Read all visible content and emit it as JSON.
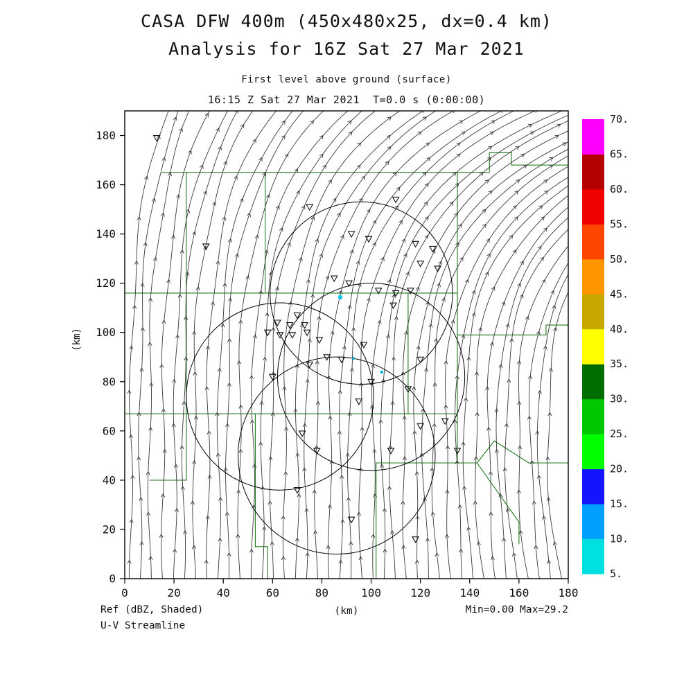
{
  "chart_data": {
    "type": "streamline",
    "title": "CASA DFW 400m (450x480x25, dx=0.4 km)",
    "subtitle": "Analysis for 16Z Sat 27 Mar 2021",
    "level_label": "First level above ground (surface)",
    "time_label": "16:15 Z Sat 27 Mar 2021  T=0.0 s (0:00:00)",
    "xlabel": "(km)",
    "ylabel": "(km)",
    "xlim": [
      0,
      180
    ],
    "ylim": [
      0,
      190
    ],
    "x_ticks": [
      0,
      20,
      40,
      60,
      80,
      100,
      120,
      140,
      160,
      180
    ],
    "y_ticks": [
      0,
      20,
      40,
      60,
      80,
      100,
      120,
      140,
      160,
      180
    ],
    "field_label": "Ref (dBZ, Shaded)",
    "overlay_label": "U-V Streamline",
    "stats_label": "Min=0.00 Max=29.2",
    "min_dbz": 0.0,
    "max_dbz": 29.2,
    "colorbar": {
      "unit": "dBZ",
      "levels": [
        5,
        10,
        15,
        20,
        25,
        30,
        35,
        40,
        45,
        50,
        55,
        60,
        65,
        70
      ],
      "label_suffix": ".",
      "colors_bottom_to_top": [
        "#00E0E0",
        "#00A0FF",
        "#1414FF",
        "#00FF00",
        "#00C800",
        "#006E00",
        "#FFFF00",
        "#C8A800",
        "#FF9600",
        "#FF4600",
        "#F00000",
        "#B40000",
        "#FF00FF"
      ]
    },
    "streamlines": {
      "description": "Southerly surface flow over the DFW domain, nearly straight south-to-north on the west side, veering and bending toward the northeast in the northern and eastern part of the domain",
      "color": "#383838",
      "seed_spacing_km": 4.5,
      "arrow_spacing_px": 62,
      "params": {
        "bend_strength": 2.6,
        "bend_start_y": 58,
        "profile_min": 0.12,
        "profile_exp": 1.4,
        "wiggle_amp": 0.06
      }
    },
    "range_circles": [
      {
        "cx": 96,
        "cy": 116,
        "r": 37
      },
      {
        "cx": 100,
        "cy": 82,
        "r": 38
      },
      {
        "cx": 63,
        "cy": 74,
        "r": 38
      },
      {
        "cx": 86,
        "cy": 50,
        "r": 40
      }
    ],
    "county_borders": {
      "color": "#1E7A1E",
      "polylines": [
        [
          [
            15,
            165
          ],
          [
            148,
            165
          ]
        ],
        [
          [
            148,
            165
          ],
          [
            148,
            173
          ],
          [
            157,
            173
          ],
          [
            157,
            168
          ],
          [
            180,
            168
          ]
        ],
        [
          [
            25,
            165
          ],
          [
            25,
            40
          ],
          [
            10,
            40
          ]
        ],
        [
          [
            0,
            116
          ],
          [
            135,
            116
          ]
        ],
        [
          [
            57,
            165
          ],
          [
            57,
            116
          ]
        ],
        [
          [
            0,
            67
          ],
          [
            135,
            67
          ]
        ],
        [
          [
            115,
            67
          ],
          [
            115,
            116
          ]
        ],
        [
          [
            135,
            165
          ],
          [
            135,
            47
          ]
        ],
        [
          [
            135,
            99
          ],
          [
            171,
            99
          ],
          [
            171,
            103
          ],
          [
            180,
            103
          ]
        ],
        [
          [
            53,
            67
          ],
          [
            53,
            13
          ],
          [
            58,
            13
          ],
          [
            58,
            0
          ]
        ],
        [
          [
            102,
            0
          ],
          [
            102,
            47
          ],
          [
            135,
            47
          ]
        ],
        [
          [
            135,
            47
          ],
          [
            143,
            47
          ],
          [
            160,
            23
          ],
          [
            160,
            14
          ]
        ],
        [
          [
            143,
            47
          ],
          [
            150,
            56
          ],
          [
            164,
            47
          ],
          [
            180,
            47
          ]
        ]
      ]
    },
    "site_markers": {
      "shape": "triangle-down",
      "color": "#101010",
      "points": [
        [
          13,
          179
        ],
        [
          33,
          135
        ],
        [
          75,
          151
        ],
        [
          110,
          154
        ],
        [
          92,
          140
        ],
        [
          99,
          138
        ],
        [
          118,
          136
        ],
        [
          125,
          134
        ],
        [
          120,
          128
        ],
        [
          127,
          126
        ],
        [
          85,
          122
        ],
        [
          91,
          120
        ],
        [
          103,
          117
        ],
        [
          110,
          116
        ],
        [
          116,
          117
        ],
        [
          109,
          111
        ],
        [
          70,
          107
        ],
        [
          62,
          104
        ],
        [
          67,
          103
        ],
        [
          73,
          103
        ],
        [
          58,
          100
        ],
        [
          63,
          99
        ],
        [
          68,
          99
        ],
        [
          74,
          100
        ],
        [
          79,
          97
        ],
        [
          97,
          95
        ],
        [
          82,
          90
        ],
        [
          88,
          89
        ],
        [
          75,
          87
        ],
        [
          120,
          89
        ],
        [
          60,
          82
        ],
        [
          100,
          80
        ],
        [
          115,
          77
        ],
        [
          95,
          72
        ],
        [
          130,
          64
        ],
        [
          120,
          62
        ],
        [
          72,
          59
        ],
        [
          78,
          52
        ],
        [
          108,
          52
        ],
        [
          135,
          52
        ],
        [
          70,
          36
        ],
        [
          92,
          24
        ],
        [
          118,
          16
        ]
      ]
    },
    "reflectivity_spots": [
      {
        "x": 87.5,
        "y": 114.3,
        "r": 3.2,
        "color": "#00C8E8"
      },
      {
        "x": 92.8,
        "y": 89.5,
        "r": 2.0,
        "color": "#00AADC"
      },
      {
        "x": 104.3,
        "y": 83.9,
        "r": 2.2,
        "color": "#00AADC"
      }
    ]
  }
}
